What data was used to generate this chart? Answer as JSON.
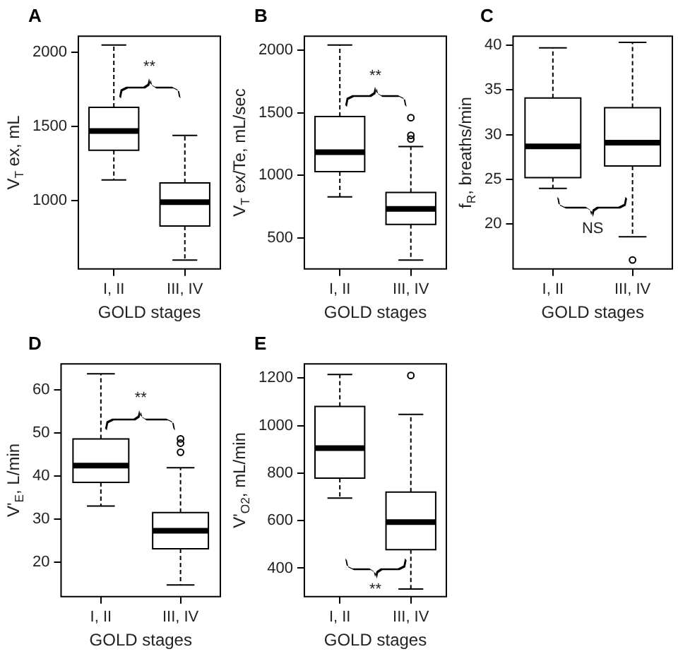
{
  "chart_data": [
    {
      "type": "box",
      "title": "A",
      "xlabel": "GOLD stages",
      "ylabel": "V$_{T}$ ex, mL",
      "categories": [
        "I, II",
        "III, IV"
      ],
      "ylim": [
        540,
        2110
      ],
      "yticks": [
        1000,
        1500,
        2000
      ],
      "grid": false,
      "legend": false,
      "boxes": [
        {
          "low": 1140,
          "q1": 1340,
          "median": 1470,
          "q3": 1630,
          "high": 2050
        },
        {
          "low": 600,
          "q1": 830,
          "median": 990,
          "q3": 1120,
          "high": 1440
        }
      ],
      "annotations": [
        "**"
      ]
    },
    {
      "type": "box",
      "title": "B",
      "xlabel": "GOLD stages",
      "ylabel": "V$_{T}$ ex/Te, mL/sec",
      "categories": [
        "I, II",
        "III, IV"
      ],
      "ylim": [
        255,
        2110
      ],
      "yticks": [
        500,
        1000,
        1500,
        2000
      ],
      "grid": false,
      "legend": false,
      "boxes": [
        {
          "low": 830,
          "q1": 1030,
          "median": 1185,
          "q3": 1470,
          "high": 2040
        },
        {
          "low": 325,
          "q1": 610,
          "median": 733,
          "q3": 865,
          "high": 1230,
          "outliers": [
            1460,
            1320,
            1290
          ]
        }
      ],
      "annotations": [
        "**"
      ]
    },
    {
      "type": "box",
      "title": "C",
      "xlabel": "GOLD stages",
      "ylabel": "f$_{R}$, breaths/min",
      "categories": [
        "I, II",
        "III, IV"
      ],
      "ylim": [
        15,
        41
      ],
      "yticks": [
        20,
        25,
        30,
        35,
        40
      ],
      "grid": false,
      "legend": false,
      "boxes": [
        {
          "low": 24,
          "q1": 25.2,
          "median": 28.7,
          "q3": 34.1,
          "high": 39.7
        },
        {
          "low": 18.6,
          "q1": 26.5,
          "median": 29.1,
          "q3": 33,
          "high": 40.3,
          "outliers": [
            16
          ]
        }
      ],
      "annotations": [
        "NS"
      ]
    },
    {
      "type": "box",
      "title": "D",
      "xlabel": "GOLD stages",
      "ylabel": "V'$_{E}$, L/min",
      "categories": [
        "I, II",
        "III, IV"
      ],
      "ylim": [
        12,
        66
      ],
      "yticks": [
        20,
        30,
        40,
        50,
        60
      ],
      "grid": false,
      "legend": false,
      "boxes": [
        {
          "low": 33,
          "q1": 38.5,
          "median": 42.4,
          "q3": 48.6,
          "high": 63.7
        },
        {
          "low": 14.7,
          "q1": 23.1,
          "median": 27.3,
          "q3": 31.5,
          "high": 41.9,
          "outliers": [
            48.6,
            47.6,
            45.5
          ]
        }
      ],
      "annotations": [
        "**"
      ]
    },
    {
      "type": "box",
      "title": "E",
      "xlabel": "GOLD stages",
      "ylabel": "V'$_{O2}$, mL/min",
      "categories": [
        "I, II",
        "III, IV"
      ],
      "ylim": [
        280,
        1260
      ],
      "yticks": [
        400,
        600,
        800,
        1000,
        1200
      ],
      "grid": false,
      "legend": false,
      "boxes": [
        {
          "low": 695,
          "q1": 779,
          "median": 905,
          "q3": 1081,
          "high": 1215
        },
        {
          "low": 312,
          "q1": 478,
          "median": 594,
          "q3": 720,
          "high": 1047,
          "outliers": [
            1211
          ]
        }
      ],
      "annotations": [
        "**"
      ]
    }
  ]
}
